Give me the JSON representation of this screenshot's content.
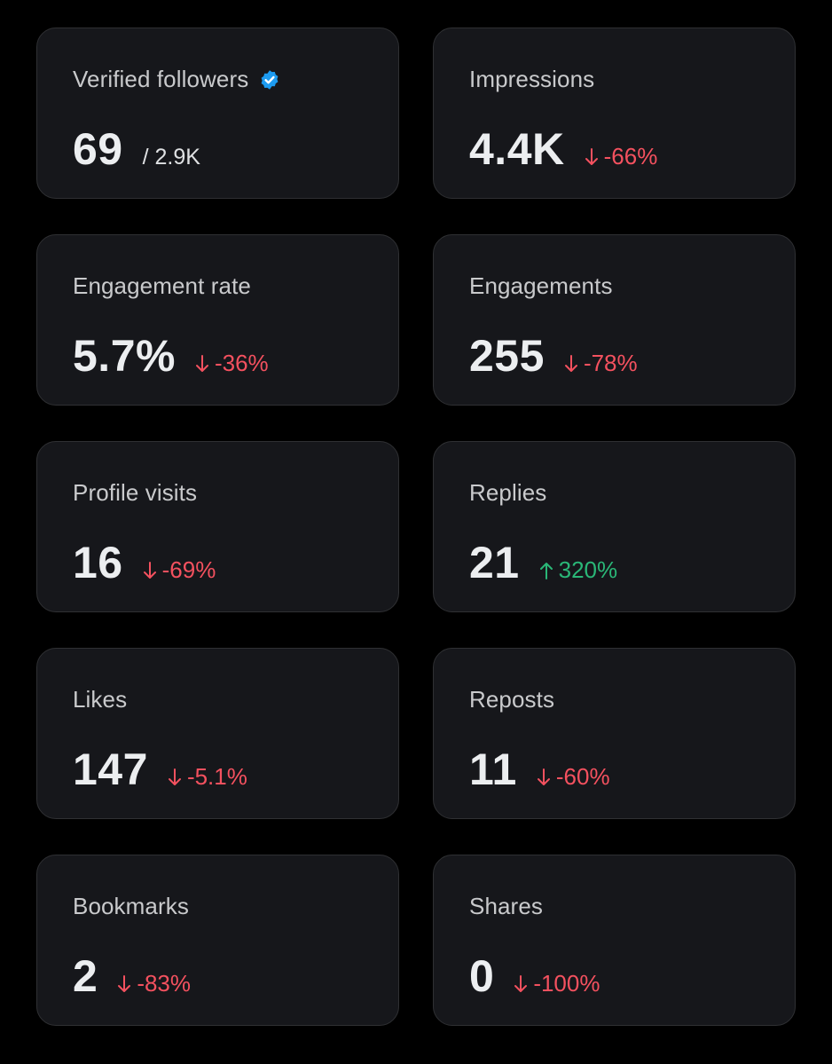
{
  "colors": {
    "background": "#000000",
    "card": "#16171b",
    "card_border": "#2f3033",
    "label": "#c9cacc",
    "value": "#eceef0",
    "negative": "#f4515f",
    "positive": "#2ab777",
    "verified": "#1d9bf0"
  },
  "cards": [
    {
      "label": "Verified followers",
      "icon": "verified-badge-icon",
      "value": "69",
      "total": "/ 2.9K"
    },
    {
      "label": "Impressions",
      "value": "4.4K",
      "change": "-66%",
      "direction": "down"
    },
    {
      "label": "Engagement rate",
      "value": "5.7%",
      "change": "-36%",
      "direction": "down"
    },
    {
      "label": "Engagements",
      "value": "255",
      "change": "-78%",
      "direction": "down"
    },
    {
      "label": "Profile visits",
      "value": "16",
      "change": "-69%",
      "direction": "down"
    },
    {
      "label": "Replies",
      "value": "21",
      "change": "320%",
      "direction": "up"
    },
    {
      "label": "Likes",
      "value": "147",
      "change": "-5.1%",
      "direction": "down"
    },
    {
      "label": "Reposts",
      "value": "11",
      "change": "-60%",
      "direction": "down"
    },
    {
      "label": "Bookmarks",
      "value": "2",
      "change": "-83%",
      "direction": "down"
    },
    {
      "label": "Shares",
      "value": "0",
      "change": "-100%",
      "direction": "down"
    }
  ]
}
